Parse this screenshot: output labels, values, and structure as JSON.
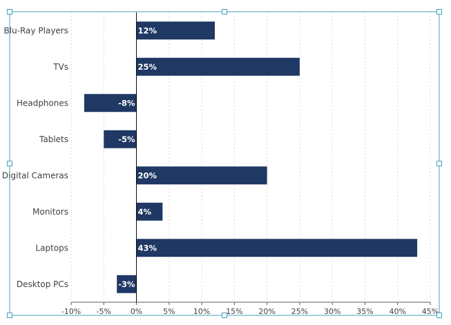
{
  "chart_data": {
    "type": "bar",
    "orientation": "horizontal",
    "categories": [
      "Blu-Ray Players",
      "TVs",
      "Headphones",
      "Tablets",
      "Digital Cameras",
      "Monitors",
      "Laptops",
      "Desktop PCs"
    ],
    "values": [
      12,
      25,
      -8,
      -5,
      20,
      4,
      43,
      -3
    ],
    "data_labels": [
      "12%",
      "25%",
      "-8%",
      "-5%",
      "20%",
      "4%",
      "43%",
      "-3%"
    ],
    "x_ticks": [
      -10,
      -5,
      0,
      5,
      10,
      15,
      20,
      25,
      30,
      35,
      40,
      45
    ],
    "x_tick_labels": [
      "-10%",
      "-5%",
      "0%",
      "5%",
      "10%",
      "15%",
      "20%",
      "25%",
      "30%",
      "35%",
      "40%",
      "45%"
    ],
    "xlim": [
      -10,
      45
    ],
    "grid": true,
    "legend": "none",
    "colors": {
      "bar": "#1f3864",
      "axis": "#000000",
      "selection_frame": "#3fa0c0"
    }
  }
}
